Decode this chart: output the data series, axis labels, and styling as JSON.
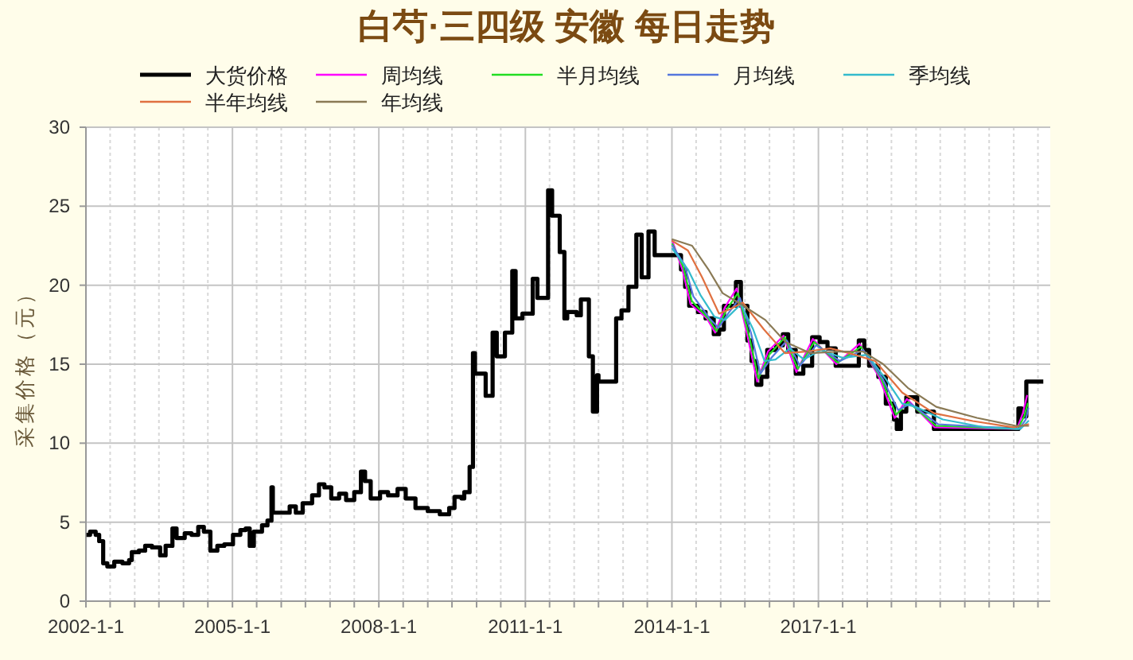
{
  "chart_data": {
    "type": "line",
    "title": "白芍·三四级 安徽 每日走势",
    "ylabel": "采集价格（元）",
    "xlim": [
      "2002-01-01",
      "2021-10-01"
    ],
    "ylim": [
      0,
      30
    ],
    "yticks": [
      0,
      5,
      10,
      15,
      20,
      25,
      30
    ],
    "xticks": [
      {
        "value": "2002-01-01",
        "label": "2002-1-1"
      },
      {
        "value": "2002-07-01",
        "label": null
      },
      {
        "value": "2003-01-01",
        "label": null
      },
      {
        "value": "2003-07-01",
        "label": null
      },
      {
        "value": "2004-01-01",
        "label": null
      },
      {
        "value": "2004-07-01",
        "label": null
      },
      {
        "value": "2005-01-01",
        "label": "2005-1-1"
      },
      {
        "value": "2005-07-01",
        "label": null
      },
      {
        "value": "2006-01-01",
        "label": null
      },
      {
        "value": "2006-07-01",
        "label": null
      },
      {
        "value": "2007-01-01",
        "label": null
      },
      {
        "value": "2007-07-01",
        "label": null
      },
      {
        "value": "2008-01-01",
        "label": "2008-1-1"
      },
      {
        "value": "2008-07-01",
        "label": null
      },
      {
        "value": "2009-01-01",
        "label": null
      },
      {
        "value": "2009-07-01",
        "label": null
      },
      {
        "value": "2010-01-01",
        "label": null
      },
      {
        "value": "2010-07-01",
        "label": null
      },
      {
        "value": "2011-01-01",
        "label": "2011-1-1"
      },
      {
        "value": "2011-07-01",
        "label": null
      },
      {
        "value": "2012-01-01",
        "label": null
      },
      {
        "value": "2012-07-01",
        "label": null
      },
      {
        "value": "2013-01-01",
        "label": null
      },
      {
        "value": "2013-07-01",
        "label": null
      },
      {
        "value": "2014-01-01",
        "label": "2014-1-1"
      },
      {
        "value": "2014-07-01",
        "label": null
      },
      {
        "value": "2015-01-01",
        "label": null
      },
      {
        "value": "2015-07-01",
        "label": null
      },
      {
        "value": "2016-01-01",
        "label": null
      },
      {
        "value": "2016-07-01",
        "label": null
      },
      {
        "value": "2017-01-01",
        "label": "2017-1-1"
      },
      {
        "value": "2017-07-01",
        "label": null
      },
      {
        "value": "2018-01-01",
        "label": null
      },
      {
        "value": "2018-07-01",
        "label": null
      },
      {
        "value": "2019-01-01",
        "label": null
      },
      {
        "value": "2019-07-01",
        "label": null
      },
      {
        "value": "2020-01-01",
        "label": null
      },
      {
        "value": "2020-07-01",
        "label": null
      },
      {
        "value": "2021-01-01",
        "label": null
      },
      {
        "value": "2021-07-01",
        "label": null
      }
    ],
    "grid": true,
    "legend": "top",
    "series": [
      {
        "name": "大货价格",
        "type": "step",
        "color": "#000000",
        "x": [
          "2002-01-05",
          "2002-02-01",
          "2002-03-15",
          "2002-04-10",
          "2002-05-10",
          "2002-06-10",
          "2002-08-01",
          "2002-10-01",
          "2002-11-20",
          "2002-12-10",
          "2003-02-01",
          "2003-03-20",
          "2003-05-10",
          "2003-07-10",
          "2003-08-20",
          "2003-10-10",
          "2003-11-10",
          "2004-01-10",
          "2004-03-01",
          "2004-04-20",
          "2004-06-01",
          "2004-07-20",
          "2004-09-10",
          "2004-11-01",
          "2005-01-05",
          "2005-03-01",
          "2005-04-10",
          "2005-05-10",
          "2005-06-10",
          "2005-08-10",
          "2005-09-20",
          "2005-10-20",
          "2005-10-30",
          "2006-01-10",
          "2006-03-05",
          "2006-04-20",
          "2006-06-10",
          "2006-08-20",
          "2006-10-10",
          "2006-11-20",
          "2007-01-10",
          "2007-03-10",
          "2007-05-01",
          "2007-07-01",
          "2007-08-20",
          "2007-09-20",
          "2007-11-01",
          "2008-01-10",
          "2008-03-10",
          "2008-05-20",
          "2008-07-20",
          "2008-10-01",
          "2009-01-01",
          "2009-04-01",
          "2009-06-10",
          "2009-07-20",
          "2009-09-10",
          "2009-10-01",
          "2009-11-10",
          "2009-12-05",
          "2009-12-20",
          "2010-02-10",
          "2010-03-10",
          "2010-05-01",
          "2010-06-01",
          "2010-08-01",
          "2010-09-25",
          "2010-10-20",
          "2010-12-10",
          "2011-02-25",
          "2011-04-01",
          "2011-06-20",
          "2011-07-20",
          "2011-09-01",
          "2011-09-15",
          "2011-10-20",
          "2011-11-10",
          "2012-01-20",
          "2012-02-20",
          "2012-04-20",
          "2012-05-20",
          "2012-06-20",
          "2012-07-01",
          "2012-11-05",
          "2012-11-10",
          "2012-12-20",
          "2013-02-10",
          "2013-04-10",
          "2013-05-20",
          "2013-07-10",
          "2013-08-25",
          "2014-02-20",
          "2014-03-10",
          "2014-04-10",
          "2014-05-10",
          "2014-07-15",
          "2014-09-10",
          "2014-11-10",
          "2014-12-20",
          "2015-01-25",
          "2015-03-20",
          "2015-04-25",
          "2015-06-01",
          "2015-07-20",
          "2015-08-20",
          "2015-09-25",
          "2015-11-01",
          "2015-12-15",
          "2016-02-20",
          "2016-04-10",
          "2016-05-20",
          "2016-07-15",
          "2016-09-10",
          "2016-11-15",
          "2017-01-10",
          "2017-03-10",
          "2017-05-10",
          "2017-09-25",
          "2017-10-30",
          "2017-12-10",
          "2018-01-15",
          "2018-03-25",
          "2018-05-20",
          "2018-07-20",
          "2018-08-10",
          "2018-09-10",
          "2018-10-20",
          "2018-12-10",
          "2019-01-10",
          "2019-02-20",
          "2019-05-15",
          "2021-01-20",
          "2021-02-05",
          "2021-03-01",
          "2021-04-05",
          "2021-08-10"
        ],
        "values": [
          4.2,
          4.4,
          4.2,
          3.8,
          2.4,
          2.2,
          2.5,
          2.4,
          2.6,
          3.1,
          3.2,
          3.5,
          3.4,
          2.9,
          3.5,
          4.6,
          4.0,
          4.3,
          4.2,
          4.7,
          4.4,
          3.2,
          3.5,
          3.6,
          4.2,
          4.5,
          4.6,
          3.5,
          4.4,
          4.8,
          5.1,
          7.2,
          5.6,
          5.6,
          6.0,
          5.6,
          6.2,
          6.7,
          7.4,
          7.2,
          6.5,
          6.8,
          6.4,
          6.9,
          8.2,
          7.6,
          6.5,
          6.9,
          6.7,
          7.1,
          6.5,
          5.9,
          5.7,
          5.5,
          5.9,
          6.6,
          6.5,
          6.9,
          8.5,
          15.7,
          14.4,
          14.4,
          13.0,
          17.0,
          15.5,
          17.0,
          20.9,
          17.9,
          18.2,
          20.4,
          19.2,
          26.0,
          24.4,
          24.4,
          22.1,
          17.9,
          18.3,
          18.1,
          19.1,
          15.5,
          12.0,
          14.3,
          13.9,
          13.9,
          17.9,
          18.4,
          19.9,
          23.2,
          20.5,
          23.4,
          21.9,
          21.9,
          21.0,
          19.9,
          18.7,
          18.3,
          17.9,
          16.9,
          17.2,
          18.7,
          18.7,
          20.2,
          18.7,
          16.5,
          15.2,
          13.7,
          14.2,
          15.9,
          16.2,
          16.9,
          15.9,
          14.4,
          14.9,
          16.7,
          16.4,
          16.0,
          14.9,
          14.9,
          16.5,
          15.9,
          14.9,
          14.2,
          12.5,
          11.5,
          10.9,
          12.0,
          12.9,
          12.9,
          12.0,
          12.0,
          10.9,
          10.9,
          12.2,
          11.7,
          13.9,
          13.9
        ]
      },
      {
        "name": "周均线",
        "color": "#ff00ff",
        "x": [
          "2014-01-05",
          "2014-03-20",
          "2014-05-20",
          "2014-09-20",
          "2014-11-20",
          "2015-02-01",
          "2015-05-01",
          "2015-07-25",
          "2015-10-01",
          "2015-12-20",
          "2016-04-15",
          "2016-07-20",
          "2016-11-20",
          "2017-05-15",
          "2017-11-05",
          "2018-03-30",
          "2018-07-25",
          "2018-10-25",
          "2019-05-20",
          "2021-01-25",
          "2021-03-10",
          "2021-04-10"
        ],
        "values": [
          22.8,
          21.0,
          18.8,
          17.9,
          17.0,
          18.6,
          19.8,
          16.6,
          13.9,
          15.8,
          16.8,
          14.5,
          16.6,
          15.0,
          16.3,
          14.2,
          11.6,
          12.8,
          11.0,
          10.9,
          11.9,
          13.0
        ]
      },
      {
        "name": "半月均线",
        "color": "#22dd22",
        "x": [
          "2014-01-05",
          "2014-03-25",
          "2014-05-30",
          "2014-09-30",
          "2014-12-01",
          "2015-02-10",
          "2015-05-10",
          "2015-08-01",
          "2015-10-10",
          "2015-12-30",
          "2016-04-25",
          "2016-07-30",
          "2016-11-30",
          "2017-05-25",
          "2017-11-15",
          "2018-04-10",
          "2018-08-05",
          "2018-11-05",
          "2019-05-30",
          "2021-02-01",
          "2021-03-20",
          "2021-04-15"
        ],
        "values": [
          22.6,
          21.2,
          19.0,
          17.9,
          17.1,
          18.4,
          19.5,
          16.8,
          14.1,
          15.6,
          16.7,
          14.7,
          16.4,
          15.1,
          16.1,
          14.2,
          11.8,
          12.6,
          11.1,
          10.9,
          11.7,
          12.5
        ]
      },
      {
        "name": "月均线",
        "color": "#5577dd",
        "x": [
          "2014-01-05",
          "2014-04-05",
          "2014-06-10",
          "2014-10-10",
          "2014-12-15",
          "2015-02-25",
          "2015-05-25",
          "2015-08-15",
          "2015-10-25",
          "2016-01-15",
          "2016-05-10",
          "2016-08-15",
          "2016-12-15",
          "2017-06-10",
          "2017-12-01",
          "2018-04-25",
          "2018-08-20",
          "2018-11-20",
          "2019-06-15",
          "2021-02-10",
          "2021-04-01",
          "2021-04-20"
        ],
        "values": [
          22.5,
          21.3,
          19.3,
          17.9,
          17.3,
          18.2,
          19.2,
          17.0,
          14.4,
          15.4,
          16.5,
          14.9,
          16.2,
          15.2,
          15.9,
          14.1,
          12.1,
          12.5,
          11.2,
          10.9,
          11.5,
          12.2
        ]
      },
      {
        "name": "季均线",
        "color": "#33bbcc",
        "x": [
          "2014-01-05",
          "2014-05-01",
          "2014-08-01",
          "2014-11-15",
          "2015-02-01",
          "2015-06-01",
          "2015-09-01",
          "2015-11-25",
          "2016-02-15",
          "2016-06-01",
          "2016-09-15",
          "2017-01-20",
          "2017-07-01",
          "2018-01-01",
          "2018-05-25",
          "2018-09-20",
          "2019-01-01",
          "2019-07-20",
          "2020-06-01",
          "2021-02-20",
          "2021-04-20"
        ],
        "values": [
          22.3,
          21.0,
          19.4,
          18.0,
          17.8,
          18.8,
          17.2,
          15.2,
          15.3,
          16.0,
          15.3,
          15.9,
          15.4,
          15.6,
          14.0,
          12.5,
          12.3,
          11.5,
          11.0,
          10.9,
          11.4
        ]
      },
      {
        "name": "半年均线",
        "color": "#e07040",
        "x": [
          "2014-01-05",
          "2014-05-01",
          "2014-08-15",
          "2014-12-20",
          "2015-03-15",
          "2015-06-15",
          "2015-11-20",
          "2016-04-25",
          "2016-10-01",
          "2017-04-01",
          "2017-08-20",
          "2018-03-01",
          "2018-09-20",
          "2019-05-15",
          "2020-03-01",
          "2021-01-01",
          "2021-04-20"
        ],
        "values": [
          22.8,
          22.2,
          20.5,
          18.2,
          18.5,
          18.9,
          17.2,
          15.7,
          15.8,
          16.0,
          15.7,
          15.2,
          13.2,
          11.9,
          11.4,
          11.0,
          11.2
        ]
      },
      {
        "name": "年均线",
        "color": "#8a7a55",
        "x": [
          "2014-01-05",
          "2014-06-01",
          "2014-10-01",
          "2015-01-15",
          "2015-06-01",
          "2015-12-01",
          "2016-05-01",
          "2016-11-01",
          "2017-06-01",
          "2017-12-01",
          "2018-05-01",
          "2018-11-01",
          "2019-06-01",
          "2020-04-01",
          "2021-01-15",
          "2021-04-20"
        ],
        "values": [
          22.9,
          22.5,
          21.0,
          19.5,
          18.8,
          17.8,
          16.4,
          15.7,
          15.8,
          15.8,
          15.0,
          13.5,
          12.3,
          11.6,
          11.1,
          11.1
        ]
      }
    ]
  }
}
